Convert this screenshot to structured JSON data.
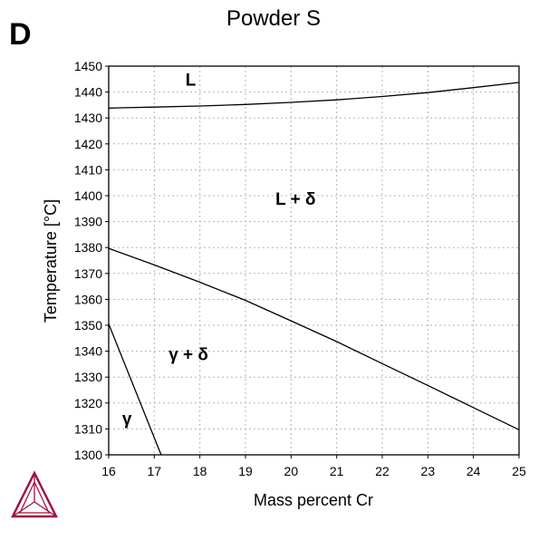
{
  "panel_letter": "D",
  "chart_data": {
    "type": "line",
    "title": "Powder S",
    "xlabel": "Mass percent Cr",
    "ylabel": "Temperature [°C]",
    "xlim": [
      16,
      25
    ],
    "ylim": [
      1300,
      1450
    ],
    "x_ticks": [
      16,
      17,
      18,
      19,
      20,
      21,
      22,
      23,
      24,
      25
    ],
    "y_ticks": [
      1300,
      1310,
      1320,
      1330,
      1340,
      1350,
      1360,
      1370,
      1380,
      1390,
      1400,
      1410,
      1420,
      1430,
      1440,
      1450
    ],
    "grid": true,
    "series": [
      {
        "x": [
          16,
          17,
          18,
          19,
          20,
          21,
          22,
          23,
          24,
          25
        ],
        "y": [
          1433.8,
          1434.2,
          1434.6,
          1435.2,
          1436.0,
          1437.0,
          1438.3,
          1439.8,
          1441.7,
          1443.7
        ]
      },
      {
        "x": [
          16,
          17,
          18,
          19,
          20,
          21,
          22,
          23,
          24,
          25
        ],
        "y": [
          1379.7,
          1373.3,
          1366.6,
          1359.6,
          1351.7,
          1343.7,
          1335.2,
          1326.8,
          1318.2,
          1309.7
        ]
      },
      {
        "x": [
          16,
          17.15
        ],
        "y": [
          1350.5,
          1300
        ]
      }
    ],
    "annotations": [
      {
        "text": "L",
        "x": 17.8,
        "y": 1442.5
      },
      {
        "text": "L + δ",
        "x": 20.1,
        "y": 1396.5
      },
      {
        "text": "γ + δ",
        "x": 17.75,
        "y": 1336.6
      },
      {
        "text": "γ",
        "x": 16.4,
        "y": 1311.8
      }
    ]
  },
  "logo": {
    "name": "thermo-calc-triangle-logo",
    "color": "#a2123f"
  }
}
